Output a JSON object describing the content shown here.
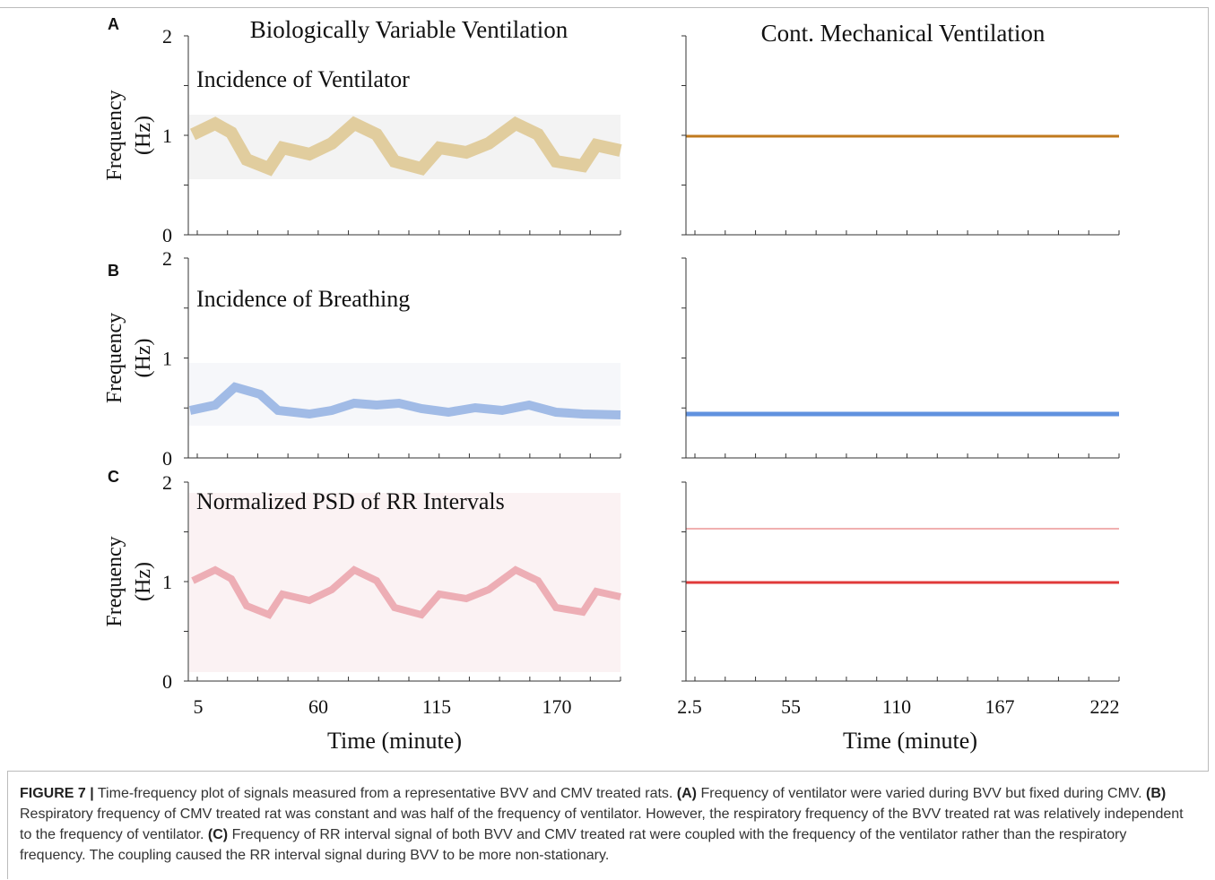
{
  "figure": {
    "panels": [
      {
        "letter": "A",
        "inner_label": "Incidence of Ventilator"
      },
      {
        "letter": "B",
        "inner_label": "Incidence of Breathing"
      },
      {
        "letter": "C",
        "inner_label": "Normalized PSD of RR Intervals"
      }
    ],
    "column_titles": [
      "Biologically Variable Ventilation",
      "Cont. Mechanical Ventilation"
    ],
    "y_axis": {
      "label_lines": [
        "Frequency",
        "(Hz)"
      ],
      "ticks": [
        "2",
        "1",
        "0"
      ]
    },
    "x_axes": [
      {
        "ticks": [
          "5",
          "60",
          "115",
          "170"
        ],
        "label": "Time (minute)"
      },
      {
        "ticks": [
          "2.5",
          "55",
          "110",
          "167",
          "222"
        ],
        "label": "Time (minute)"
      }
    ]
  },
  "caption": {
    "label": "FIGURE 7 |",
    "segments": [
      " Time-frequency plot of signals measured from a representative BVV and CMV treated rats. ",
      "(A)",
      " Frequency of ventilator were varied during BVV but fixed during CMV. ",
      "(B)",
      " Respiratory frequency of CMV treated rat was constant and was half of the frequency of ventilator. However, the respiratory frequency of the BVV treated rat was relatively independent to the frequency of ventilator. ",
      "(C)",
      " Frequency of RR interval signal of both BVV and CMV treated rat were coupled with the frequency of the ventilator rather than the respiratory frequency. The coupling caused the RR interval signal during BVV to be more non-stationary."
    ]
  }
}
